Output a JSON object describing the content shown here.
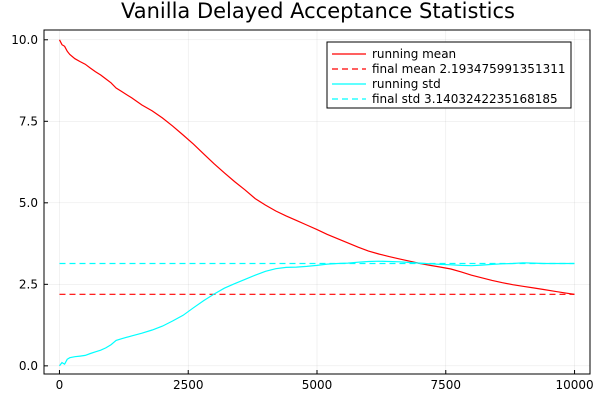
{
  "chart_data": {
    "type": "line",
    "title": "Vanilla Delayed Acceptance Statistics",
    "xlabel": "",
    "ylabel": "",
    "xlim": [
      -300,
      10300
    ],
    "ylim": [
      -0.25,
      10.3
    ],
    "xticks": [
      0,
      2500,
      5000,
      7500,
      10000
    ],
    "xtick_labels": [
      "0",
      "2500",
      "5000",
      "7500",
      "10000"
    ],
    "yticks": [
      0,
      2.5,
      5,
      7.5,
      10
    ],
    "ytick_labels": [
      "0.0",
      "2.5",
      "5.0",
      "7.5",
      "10.0"
    ],
    "grid": true,
    "legend_position": "top-right",
    "series": [
      {
        "name": "running mean",
        "color": "#ff0000",
        "style": "solid",
        "x": [
          0,
          50,
          100,
          150,
          200,
          300,
          400,
          500,
          600,
          700,
          800,
          900,
          1000,
          1100,
          1200,
          1400,
          1600,
          1800,
          2000,
          2200,
          2400,
          2600,
          2800,
          3000,
          3200,
          3400,
          3600,
          3800,
          4000,
          4200,
          4400,
          4600,
          4800,
          5000,
          5200,
          5400,
          5600,
          5800,
          6000,
          6200,
          6400,
          6600,
          6800,
          7000,
          7200,
          7400,
          7600,
          7800,
          8000,
          8200,
          8400,
          8600,
          8800,
          9000,
          9200,
          9400,
          9600,
          9800,
          10000
        ],
        "y": [
          10.0,
          9.85,
          9.8,
          9.65,
          9.55,
          9.42,
          9.33,
          9.25,
          9.13,
          9.02,
          8.92,
          8.8,
          8.68,
          8.52,
          8.42,
          8.22,
          8.0,
          7.82,
          7.6,
          7.35,
          7.08,
          6.8,
          6.5,
          6.2,
          5.92,
          5.65,
          5.4,
          5.13,
          4.93,
          4.75,
          4.6,
          4.46,
          4.32,
          4.18,
          4.03,
          3.9,
          3.77,
          3.64,
          3.52,
          3.43,
          3.35,
          3.28,
          3.21,
          3.14,
          3.08,
          3.03,
          2.97,
          2.88,
          2.78,
          2.7,
          2.62,
          2.55,
          2.49,
          2.44,
          2.39,
          2.34,
          2.29,
          2.24,
          2.19
        ]
      },
      {
        "name": "final mean 2.193475991351311",
        "color": "#ff0000",
        "style": "dashed",
        "x": [
          0,
          10000
        ],
        "y": [
          2.193475991351311,
          2.193475991351311
        ]
      },
      {
        "name": "running std",
        "color": "#00ffff",
        "style": "solid",
        "x": [
          0,
          50,
          100,
          150,
          200,
          300,
          400,
          500,
          600,
          700,
          800,
          900,
          1000,
          1100,
          1200,
          1400,
          1600,
          1800,
          2000,
          2200,
          2400,
          2600,
          2800,
          3000,
          3200,
          3400,
          3600,
          3800,
          4000,
          4200,
          4400,
          4600,
          4800,
          5000,
          5200,
          5400,
          5600,
          5800,
          6000,
          6200,
          6400,
          6600,
          6800,
          7000,
          7200,
          7400,
          7600,
          7800,
          8000,
          8200,
          8400,
          8600,
          8800,
          9000,
          9200,
          9400,
          9600,
          9800,
          10000
        ],
        "y": [
          0.0,
          0.1,
          0.05,
          0.2,
          0.25,
          0.28,
          0.3,
          0.32,
          0.38,
          0.43,
          0.48,
          0.55,
          0.65,
          0.78,
          0.83,
          0.92,
          1.0,
          1.1,
          1.22,
          1.38,
          1.55,
          1.78,
          2.0,
          2.2,
          2.38,
          2.52,
          2.65,
          2.78,
          2.9,
          2.98,
          3.02,
          3.03,
          3.05,
          3.08,
          3.12,
          3.14,
          3.15,
          3.18,
          3.2,
          3.21,
          3.2,
          3.19,
          3.17,
          3.15,
          3.13,
          3.11,
          3.1,
          3.08,
          3.07,
          3.09,
          3.11,
          3.13,
          3.14,
          3.16,
          3.15,
          3.14,
          3.14,
          3.14,
          3.14
        ]
      },
      {
        "name": "final std 3.1403242235168185",
        "color": "#00ffff",
        "style": "dashed",
        "x": [
          0,
          10000
        ],
        "y": [
          3.1403242235168185,
          3.1403242235168185
        ]
      }
    ]
  }
}
